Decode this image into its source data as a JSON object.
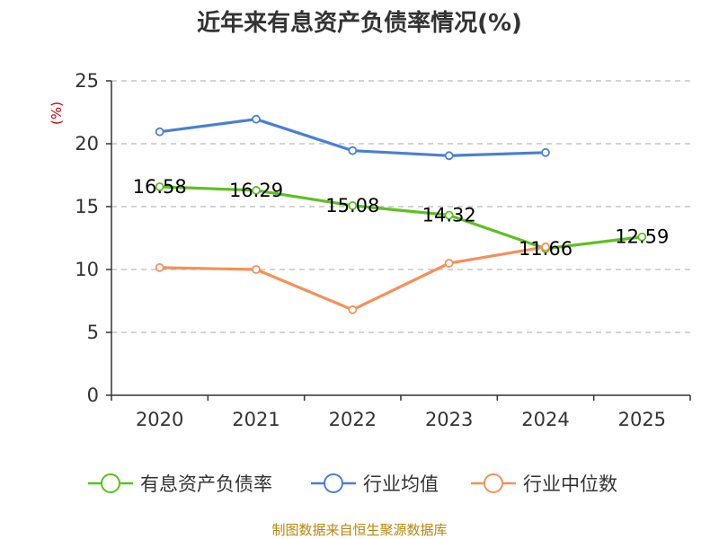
{
  "chart_data": {
    "type": "line",
    "title": "近年来有息资产负债率情况(%)",
    "ylabel": "(%)",
    "xlabel": "",
    "categories": [
      "2020",
      "2021",
      "2022",
      "2023",
      "2024",
      "2025"
    ],
    "ylim": [
      0,
      25
    ],
    "yticks": [
      0,
      5,
      10,
      15,
      20,
      25
    ],
    "grid": true,
    "legend_position": "bottom",
    "series": [
      {
        "name": "有息资产负债率",
        "color": "#5cc11f",
        "values": [
          16.58,
          16.29,
          15.08,
          14.32,
          11.66,
          12.59
        ],
        "data_labels": [
          "16.58",
          "16.29",
          "15.08",
          "14.32",
          "11.66",
          "12.59"
        ]
      },
      {
        "name": "行业均值",
        "color": "#4a7fd6",
        "values": [
          20.95,
          21.95,
          19.45,
          19.05,
          19.3,
          null
        ]
      },
      {
        "name": "行业中位数",
        "color": "#f5905a",
        "values": [
          10.15,
          10.0,
          6.8,
          10.5,
          11.8,
          null
        ]
      }
    ],
    "source": "制图数据来自恒生聚源数据库"
  }
}
